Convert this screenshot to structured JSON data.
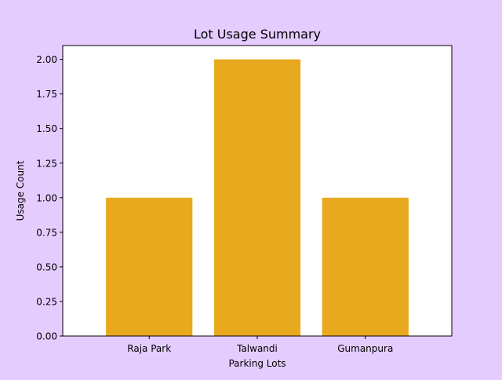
{
  "colors": {
    "figure_background": "#e5ccff",
    "plot_background": "#ffffff",
    "bar": "#e8a91f",
    "axis": "#000000"
  },
  "chart_data": {
    "type": "bar",
    "title": "Lot Usage Summary",
    "xlabel": "Parking Lots",
    "ylabel": "Usage Count",
    "categories": [
      "Raja Park",
      "Talwandi",
      "Gumanpura"
    ],
    "values": [
      1,
      2,
      1
    ],
    "ylim": [
      0,
      2.1
    ],
    "yticks": [
      0.0,
      0.25,
      0.5,
      0.75,
      1.0,
      1.25,
      1.5,
      1.75,
      2.0
    ],
    "ytick_labels": [
      "0.00",
      "0.25",
      "0.50",
      "0.75",
      "1.00",
      "1.25",
      "1.50",
      "1.75",
      "2.00"
    ],
    "grid": false,
    "legend": "none"
  }
}
